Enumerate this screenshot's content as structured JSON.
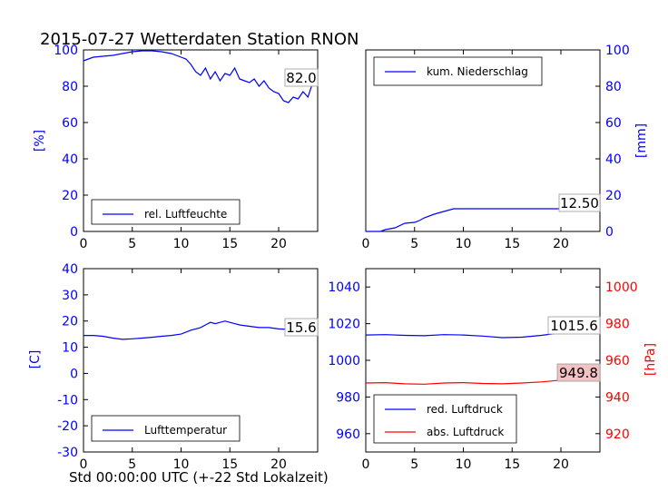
{
  "title": "2015-07-27 Wetterdaten Station RNON",
  "xlabel": "Std 00:00:00 UTC (+-22 Std Lokalzeit)",
  "colors": {
    "blue": "#0000ff",
    "red": "#ff0000",
    "black": "#000000",
    "annot_red_bg": "#f4c2c2"
  },
  "chart_data": [
    {
      "type": "line",
      "ylabel": "[%]",
      "ylim": [
        0,
        100
      ],
      "xlim": [
        0,
        24
      ],
      "xticks": [
        0,
        5,
        10,
        15,
        20
      ],
      "yticks": [
        0,
        20,
        40,
        60,
        80,
        100
      ],
      "legend": "bottom-left",
      "annotation": "82.0",
      "series": [
        {
          "name": "rel. Luftfeuchte",
          "color": "#0000ff",
          "x": [
            0,
            1,
            2,
            3,
            4,
            5,
            6,
            7,
            8,
            9,
            10,
            10.5,
            11,
            11.5,
            12,
            12.5,
            13,
            13.5,
            14,
            14.5,
            15,
            15.5,
            16,
            16.5,
            17,
            17.5,
            18,
            18.5,
            19,
            19.5,
            20,
            20.5,
            21,
            21.5,
            22,
            22.5,
            23,
            23.5,
            24
          ],
          "values": [
            94,
            96,
            96.5,
            97,
            98,
            99,
            99.5,
            99.5,
            99,
            98,
            96,
            95,
            92,
            88,
            86,
            90,
            84,
            88,
            83,
            87,
            86,
            90,
            84,
            83,
            82,
            84,
            80,
            83,
            79,
            77,
            76,
            72,
            71,
            74,
            73,
            77,
            74,
            82,
            82
          ]
        }
      ]
    },
    {
      "type": "line",
      "ylabel": "[mm]",
      "ylim": [
        0,
        100
      ],
      "xlim": [
        0,
        24
      ],
      "xticks": [
        0,
        5,
        10,
        15,
        20
      ],
      "yticks": [
        0,
        20,
        40,
        60,
        80,
        100
      ],
      "legend": "top-left",
      "annotation": "12.50",
      "series": [
        {
          "name": "kum. Niederschlag",
          "color": "#0000ff",
          "x": [
            0,
            1.5,
            2,
            3,
            4,
            5,
            5.5,
            6,
            7,
            8,
            9,
            10,
            15,
            20,
            24
          ],
          "values": [
            0,
            0,
            1,
            2,
            4.5,
            5,
            6,
            7.5,
            9.5,
            11,
            12.5,
            12.5,
            12.5,
            12.5,
            12.5
          ]
        }
      ]
    },
    {
      "type": "line",
      "ylabel": "[C]",
      "ylim": [
        -30,
        40
      ],
      "xlim": [
        0,
        24
      ],
      "xticks": [
        0,
        5,
        10,
        15,
        20
      ],
      "yticks": [
        -30,
        -20,
        -10,
        0,
        10,
        20,
        30,
        40
      ],
      "legend": "bottom-left",
      "annotation": "15.6",
      "series": [
        {
          "name": "Lufttemperatur",
          "color": "#0000ff",
          "x": [
            0,
            1,
            2,
            3,
            4,
            5,
            6,
            7,
            8,
            9,
            10,
            11,
            11.5,
            12,
            12.5,
            13,
            13.5,
            14,
            14.5,
            15,
            15.5,
            16,
            17,
            18,
            19,
            20,
            21,
            22,
            23,
            24
          ],
          "values": [
            14.5,
            14.5,
            14.2,
            13.5,
            13,
            13.2,
            13.5,
            13.8,
            14.2,
            14.5,
            15,
            16.5,
            17,
            17.5,
            18.5,
            19.5,
            19,
            19.5,
            20,
            19.5,
            19,
            18.5,
            18,
            17.5,
            17.5,
            17,
            16.8,
            16.5,
            16,
            15.6
          ]
        }
      ]
    },
    {
      "type": "line",
      "ylabel_left": "",
      "ylabel_right": "[hPa]",
      "xlim": [
        0,
        24
      ],
      "xticks": [
        0,
        5,
        10,
        15,
        20
      ],
      "ylim_left": [
        950,
        1050
      ],
      "ylim_right": [
        910,
        1010
      ],
      "yticks_left": [
        960,
        980,
        1000,
        1020,
        1040
      ],
      "yticks_right": [
        920,
        940,
        960,
        980,
        1000
      ],
      "legend": "bottom-left",
      "annotations": [
        "1015.6",
        "949.8"
      ],
      "series": [
        {
          "name": "red. Luftdruck",
          "color": "#0000ff",
          "axis": "left",
          "x": [
            0,
            2,
            4,
            6,
            8,
            10,
            12,
            14,
            16,
            18,
            20,
            22,
            24
          ],
          "values": [
            1013.8,
            1014,
            1013.6,
            1013.4,
            1014,
            1013.8,
            1013.2,
            1012.4,
            1012.6,
            1013.6,
            1015,
            1015.6,
            1015.6
          ]
        },
        {
          "name": "abs. Luftdruck",
          "color": "#ff0000",
          "axis": "right",
          "x": [
            0,
            2,
            4,
            6,
            8,
            10,
            12,
            14,
            16,
            18,
            20,
            22,
            24
          ],
          "values": [
            947.6,
            947.8,
            947.2,
            947.0,
            947.6,
            947.8,
            947.4,
            947.2,
            947.6,
            948.2,
            949.2,
            949.8,
            949.8
          ]
        }
      ]
    }
  ]
}
